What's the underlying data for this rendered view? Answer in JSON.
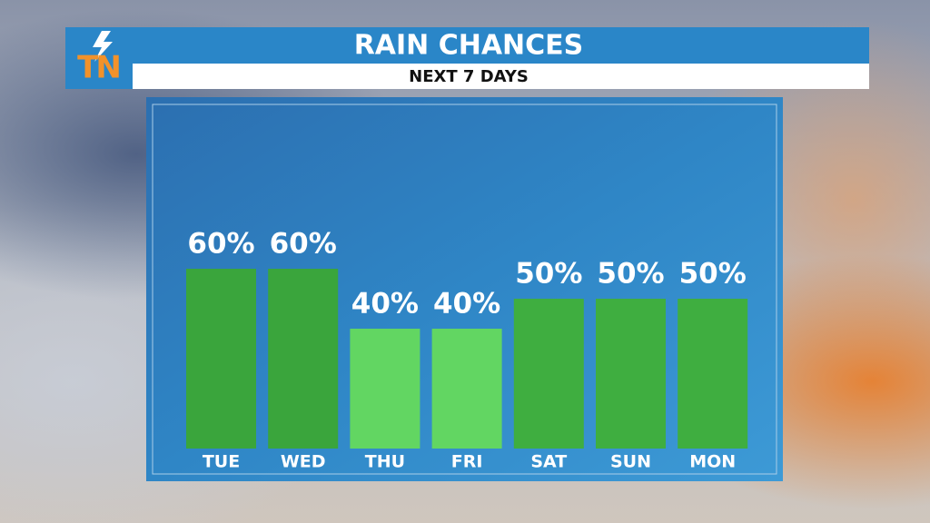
{
  "logo": "TN",
  "chart_data": {
    "type": "bar",
    "title": "RAIN CHANCES",
    "subtitle": "NEXT 7 DAYS",
    "categories": [
      "TUE",
      "WED",
      "THU",
      "FRI",
      "SAT",
      "SUN",
      "MON"
    ],
    "values": [
      60,
      60,
      40,
      40,
      50,
      50,
      50
    ],
    "value_labels": [
      "60%",
      "60%",
      "40%",
      "40%",
      "50%",
      "50%",
      "50%"
    ],
    "colors": [
      "#3aa53c",
      "#3aa53c",
      "#62d662",
      "#62d662",
      "#3fae40",
      "#3fae40",
      "#3fae40"
    ]
  }
}
